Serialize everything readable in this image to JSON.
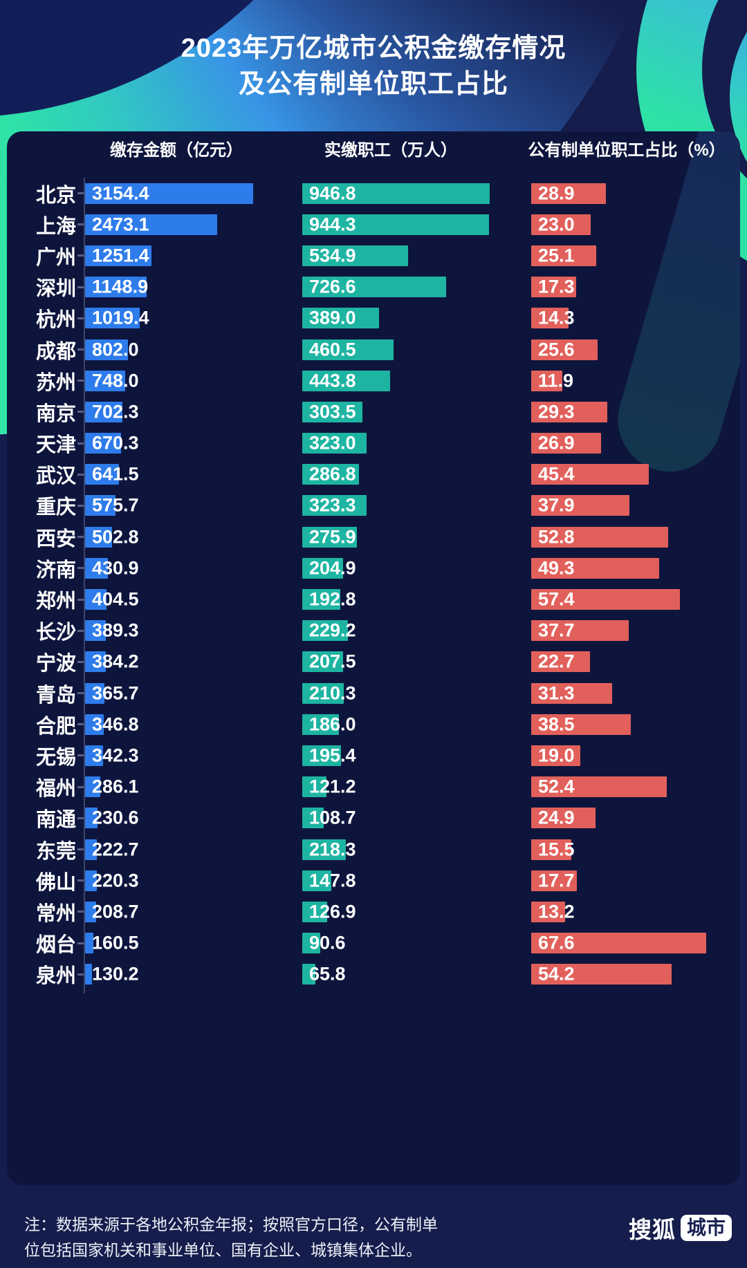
{
  "title": {
    "line1": "2023年万亿城市公积金缴存情况",
    "line2": "及公有制单位职工占比"
  },
  "columns": [
    {
      "key": "deposit",
      "label": "缴存金额（亿元）",
      "color": "#2e7ceb",
      "max": 3154.4
    },
    {
      "key": "employees",
      "label": "实缴职工（万人）",
      "color": "#1eb4a2",
      "max": 946.8
    },
    {
      "key": "ratio",
      "label": "公有制单位职工占比（%）",
      "color": "#e2605b",
      "max": 67.6
    }
  ],
  "rows": [
    {
      "city": "北京",
      "deposit": "3154.4",
      "employees": "946.8",
      "ratio": "28.9"
    },
    {
      "city": "上海",
      "deposit": "2473.1",
      "employees": "944.3",
      "ratio": "23.0"
    },
    {
      "city": "广州",
      "deposit": "1251.4",
      "employees": "534.9",
      "ratio": "25.1"
    },
    {
      "city": "深圳",
      "deposit": "1148.9",
      "employees": "726.6",
      "ratio": "17.3"
    },
    {
      "city": "杭州",
      "deposit": "1019.4",
      "employees": "389.0",
      "ratio": "14.3"
    },
    {
      "city": "成都",
      "deposit": "802.0",
      "employees": "460.5",
      "ratio": "25.6"
    },
    {
      "city": "苏州",
      "deposit": "748.0",
      "employees": "443.8",
      "ratio": "11.9"
    },
    {
      "city": "南京",
      "deposit": "702.3",
      "employees": "303.5",
      "ratio": "29.3"
    },
    {
      "city": "天津",
      "deposit": "670.3",
      "employees": "323.0",
      "ratio": "26.9"
    },
    {
      "city": "武汉",
      "deposit": "641.5",
      "employees": "286.8",
      "ratio": "45.4"
    },
    {
      "city": "重庆",
      "deposit": "575.7",
      "employees": "323.3",
      "ratio": "37.9"
    },
    {
      "city": "西安",
      "deposit": "502.8",
      "employees": "275.9",
      "ratio": "52.8"
    },
    {
      "city": "济南",
      "deposit": "430.9",
      "employees": "204.9",
      "ratio": "49.3"
    },
    {
      "city": "郑州",
      "deposit": "404.5",
      "employees": "192.8",
      "ratio": "57.4"
    },
    {
      "city": "长沙",
      "deposit": "389.3",
      "employees": "229.2",
      "ratio": "37.7"
    },
    {
      "city": "宁波",
      "deposit": "384.2",
      "employees": "207.5",
      "ratio": "22.7"
    },
    {
      "city": "青岛",
      "deposit": "365.7",
      "employees": "210.3",
      "ratio": "31.3"
    },
    {
      "city": "合肥",
      "deposit": "346.8",
      "employees": "186.0",
      "ratio": "38.5"
    },
    {
      "city": "无锡",
      "deposit": "342.3",
      "employees": "195.4",
      "ratio": "19.0"
    },
    {
      "city": "福州",
      "deposit": "286.1",
      "employees": "121.2",
      "ratio": "52.4"
    },
    {
      "city": "南通",
      "deposit": "230.6",
      "employees": "108.7",
      "ratio": "24.9"
    },
    {
      "city": "东莞",
      "deposit": "222.7",
      "employees": "218.3",
      "ratio": "15.5"
    },
    {
      "city": "佛山",
      "deposit": "220.3",
      "employees": "147.8",
      "ratio": "17.7"
    },
    {
      "city": "常州",
      "deposit": "208.7",
      "employees": "126.9",
      "ratio": "13.2"
    },
    {
      "city": "烟台",
      "deposit": "160.5",
      "employees": "90.6",
      "ratio": "67.6"
    },
    {
      "city": "泉州",
      "deposit": "130.2",
      "employees": "65.8",
      "ratio": "54.2"
    }
  ],
  "footer": {
    "note_line1": "注：数据来源于各地公积金年报；按照官方口径，公有制单",
    "note_line2": "位包括国家机关和事业单位、国有企业、城镇集体企业。"
  },
  "logo": {
    "brand": "搜狐",
    "badge": "城市"
  },
  "chart_data": {
    "type": "bar",
    "orientation": "horizontal",
    "title": "2023年万亿城市公积金缴存情况及公有制单位职工占比",
    "categories": [
      "北京",
      "上海",
      "广州",
      "深圳",
      "杭州",
      "成都",
      "苏州",
      "南京",
      "天津",
      "武汉",
      "重庆",
      "西安",
      "济南",
      "郑州",
      "长沙",
      "宁波",
      "青岛",
      "合肥",
      "无锡",
      "福州",
      "南通",
      "东莞",
      "佛山",
      "常州",
      "烟台",
      "泉州"
    ],
    "series": [
      {
        "name": "缴存金额（亿元）",
        "color": "#2e7ceb",
        "values": [
          3154.4,
          2473.1,
          1251.4,
          1148.9,
          1019.4,
          802.0,
          748.0,
          702.3,
          670.3,
          641.5,
          575.7,
          502.8,
          430.9,
          404.5,
          389.3,
          384.2,
          365.7,
          346.8,
          342.3,
          286.1,
          230.6,
          222.7,
          220.3,
          208.7,
          160.5,
          130.2
        ]
      },
      {
        "name": "实缴职工（万人）",
        "color": "#1eb4a2",
        "values": [
          946.8,
          944.3,
          534.9,
          726.6,
          389.0,
          460.5,
          443.8,
          303.5,
          323.0,
          286.8,
          323.3,
          275.9,
          204.9,
          192.8,
          229.2,
          207.5,
          210.3,
          186.0,
          195.4,
          121.2,
          108.7,
          218.3,
          147.8,
          126.9,
          90.6,
          65.8
        ]
      },
      {
        "name": "公有制单位职工占比（%）",
        "color": "#e2605b",
        "values": [
          28.9,
          23.0,
          25.1,
          17.3,
          14.3,
          25.6,
          11.9,
          29.3,
          26.9,
          45.4,
          37.9,
          52.8,
          49.3,
          57.4,
          37.7,
          22.7,
          31.3,
          38.5,
          19.0,
          52.4,
          24.9,
          15.5,
          17.7,
          13.2,
          67.6,
          54.2
        ]
      }
    ],
    "value_labels": true,
    "grid": false,
    "legend_position": "column-headers-top",
    "note": "注：数据来源于各地公积金年报；按照官方口径，公有制单位包括国家机关和事业单位、国有企业、城镇集体企业。"
  }
}
